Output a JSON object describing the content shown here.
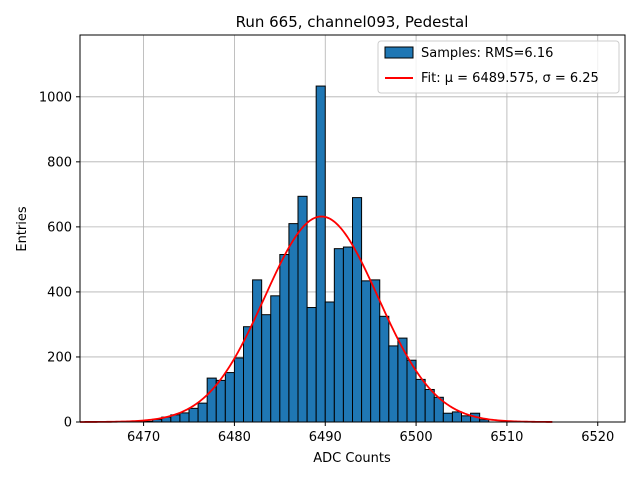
{
  "chart_data": {
    "type": "bar",
    "title": "Run 665, channel093, Pedestal",
    "xlabel": "ADC Counts",
    "ylabel": "Entries",
    "xlim": [
      6463,
      6523
    ],
    "ylim": [
      0,
      1190
    ],
    "xticks": [
      6470,
      6480,
      6490,
      6500,
      6510,
      6520
    ],
    "yticks": [
      0,
      200,
      400,
      600,
      800,
      1000
    ],
    "grid": true,
    "legend_position": "top-right",
    "bins": {
      "width": 1,
      "left_edges": [
        6470,
        6471,
        6472,
        6473,
        6474,
        6475,
        6476,
        6477,
        6478,
        6479,
        6480,
        6481,
        6482,
        6483,
        6484,
        6485,
        6486,
        6487,
        6488,
        6489,
        6490,
        6491,
        6492,
        6493,
        6494,
        6495,
        6496,
        6497,
        6498,
        6499,
        6500,
        6501,
        6502,
        6503,
        6504,
        6505,
        6506,
        6507
      ],
      "counts": [
        2,
        8,
        15,
        22,
        28,
        42,
        58,
        135,
        128,
        152,
        197,
        293,
        437,
        330,
        388,
        515,
        610,
        694,
        352,
        1033,
        369,
        533,
        538,
        690,
        434,
        437,
        325,
        234,
        258,
        190,
        131,
        100,
        76,
        27,
        31,
        19,
        27,
        7
      ]
    },
    "series": [
      {
        "name": "Samples: RMS=6.16",
        "kind": "histogram",
        "color": "#1f77b4",
        "edgecolor": "#000000"
      },
      {
        "name": "Fit: μ = 6489.575, σ = 6.25",
        "kind": "line",
        "color": "#ff0000",
        "mu": 6489.575,
        "sigma": 6.25,
        "amplitude": 632,
        "x_range": [
          6463,
          6515
        ]
      }
    ]
  }
}
